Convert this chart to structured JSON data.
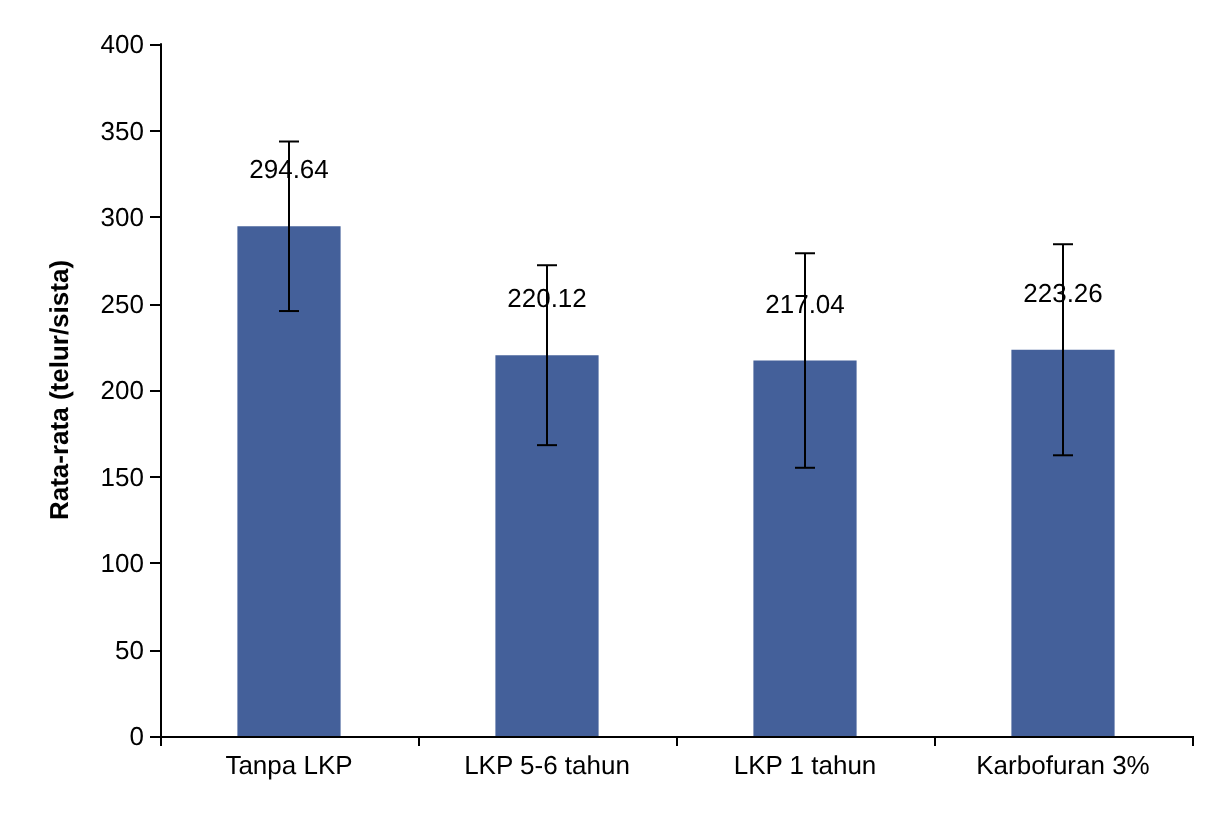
{
  "chart_data": {
    "type": "bar",
    "ylabel": "Rata-rata (telur/sista)",
    "categories": [
      "Tanpa LKP",
      "LKP 5-6 tahun",
      "LKP 1 tahun",
      "Karbofuran 3%"
    ],
    "values": [
      294.64,
      220.12,
      217.04,
      223.26
    ],
    "errors": [
      49,
      52,
      62,
      61
    ],
    "color": "#44609a",
    "ylim": [
      0,
      400
    ],
    "yticks": [
      0,
      50,
      100,
      150,
      200,
      250,
      300,
      350,
      400
    ],
    "grid": false,
    "data_labels": true
  }
}
